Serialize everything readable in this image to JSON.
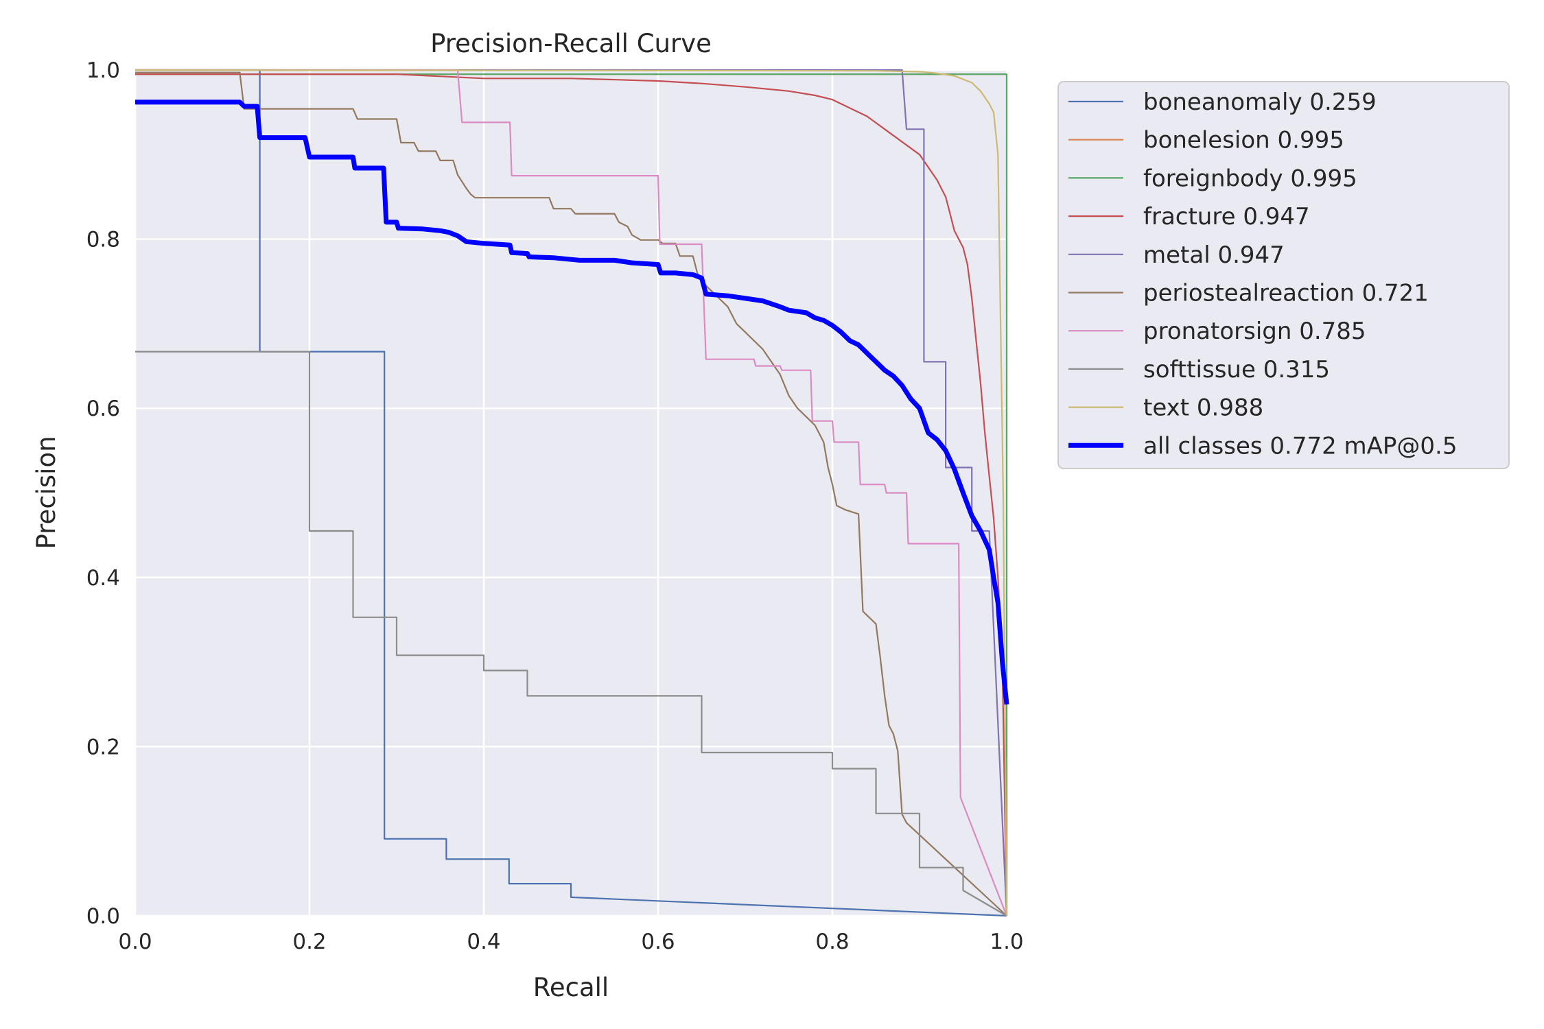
{
  "chart_data": {
    "type": "line",
    "title": "Precision-Recall Curve",
    "xlabel": "Recall",
    "ylabel": "Precision",
    "xlim": [
      0,
      1
    ],
    "ylim": [
      0,
      1
    ],
    "grid": true,
    "legend_position": "outside-right-top",
    "x_ticks": [
      0.0,
      0.2,
      0.4,
      0.6,
      0.8,
      1.0
    ],
    "y_ticks": [
      0.0,
      0.2,
      0.4,
      0.6,
      0.8,
      1.0
    ],
    "x_tick_labels": [
      "0.0",
      "0.2",
      "0.4",
      "0.6",
      "0.8",
      "1.0"
    ],
    "y_tick_labels": [
      "0.0",
      "0.2",
      "0.4",
      "0.6",
      "0.8",
      "1.0"
    ],
    "series": [
      {
        "name": "boneanomaly",
        "map": "0.259",
        "label": "boneanomaly 0.259",
        "color": "#4c72b0",
        "bold": false,
        "points": [
          [
            0,
            1
          ],
          [
            0.143,
            1
          ],
          [
            0.143,
            0.667
          ],
          [
            0.286,
            0.667
          ],
          [
            0.286,
            0.091
          ],
          [
            0.357,
            0.091
          ],
          [
            0.357,
            0.067
          ],
          [
            0.429,
            0.067
          ],
          [
            0.429,
            0.038
          ],
          [
            0.5,
            0.038
          ],
          [
            0.5,
            0.022
          ],
          [
            1.0,
            0.0
          ]
        ]
      },
      {
        "name": "bonelesion",
        "map": "0.995",
        "label": "bonelesion 0.995",
        "color": "#dd8452",
        "bold": false,
        "points": [
          [
            0,
            0.995
          ],
          [
            0.99,
            0.995
          ],
          [
            1.0,
            0.995
          ],
          [
            1.0,
            0.0
          ]
        ]
      },
      {
        "name": "foreignbody",
        "map": "0.995",
        "label": "foreignbody 0.995",
        "color": "#55a868",
        "bold": false,
        "points": [
          [
            0,
            0.995
          ],
          [
            0.99,
            0.995
          ],
          [
            1.0,
            0.995
          ],
          [
            1.0,
            0.0
          ]
        ]
      },
      {
        "name": "fracture",
        "map": "0.947",
        "label": "fracture 0.947",
        "color": "#c44e52",
        "bold": false,
        "points": [
          [
            0,
            0.995
          ],
          [
            0.3,
            0.995
          ],
          [
            0.4,
            0.99
          ],
          [
            0.5,
            0.99
          ],
          [
            0.6,
            0.987
          ],
          [
            0.65,
            0.984
          ],
          [
            0.7,
            0.98
          ],
          [
            0.75,
            0.975
          ],
          [
            0.78,
            0.97
          ],
          [
            0.8,
            0.965
          ],
          [
            0.82,
            0.955
          ],
          [
            0.84,
            0.945
          ],
          [
            0.86,
            0.93
          ],
          [
            0.88,
            0.915
          ],
          [
            0.9,
            0.9
          ],
          [
            0.91,
            0.885
          ],
          [
            0.92,
            0.87
          ],
          [
            0.93,
            0.85
          ],
          [
            0.935,
            0.83
          ],
          [
            0.94,
            0.81
          ],
          [
            0.95,
            0.79
          ],
          [
            0.955,
            0.77
          ],
          [
            0.96,
            0.73
          ],
          [
            0.965,
            0.68
          ],
          [
            0.97,
            0.63
          ],
          [
            0.975,
            0.57
          ],
          [
            0.98,
            0.52
          ],
          [
            0.985,
            0.47
          ],
          [
            0.99,
            0.4
          ],
          [
            0.995,
            0.3
          ],
          [
            1.0,
            0.0
          ]
        ]
      },
      {
        "name": "metal",
        "map": "0.947",
        "label": "metal 0.947",
        "color": "#8172b3",
        "bold": false,
        "points": [
          [
            0,
            1
          ],
          [
            0.88,
            1
          ],
          [
            0.885,
            0.93
          ],
          [
            0.905,
            0.93
          ],
          [
            0.905,
            0.655
          ],
          [
            0.93,
            0.655
          ],
          [
            0.93,
            0.53
          ],
          [
            0.96,
            0.53
          ],
          [
            0.96,
            0.455
          ],
          [
            0.98,
            0.455
          ],
          [
            1.0,
            0.0
          ]
        ]
      },
      {
        "name": "periostealreaction",
        "map": "0.721",
        "label": "periostealreaction 0.721",
        "color": "#937860",
        "bold": false,
        "points": [
          [
            0,
            0.997
          ],
          [
            0.12,
            0.997
          ],
          [
            0.125,
            0.954
          ],
          [
            0.25,
            0.954
          ],
          [
            0.255,
            0.942
          ],
          [
            0.3,
            0.942
          ],
          [
            0.305,
            0.914
          ],
          [
            0.32,
            0.914
          ],
          [
            0.325,
            0.904
          ],
          [
            0.345,
            0.904
          ],
          [
            0.35,
            0.893
          ],
          [
            0.365,
            0.893
          ],
          [
            0.37,
            0.876
          ],
          [
            0.375,
            0.868
          ],
          [
            0.38,
            0.86
          ],
          [
            0.385,
            0.853
          ],
          [
            0.39,
            0.849
          ],
          [
            0.475,
            0.849
          ],
          [
            0.48,
            0.836
          ],
          [
            0.5,
            0.836
          ],
          [
            0.505,
            0.83
          ],
          [
            0.55,
            0.83
          ],
          [
            0.555,
            0.82
          ],
          [
            0.565,
            0.815
          ],
          [
            0.57,
            0.805
          ],
          [
            0.58,
            0.799
          ],
          [
            0.6,
            0.799
          ],
          [
            0.605,
            0.795
          ],
          [
            0.62,
            0.795
          ],
          [
            0.625,
            0.78
          ],
          [
            0.64,
            0.78
          ],
          [
            0.645,
            0.76
          ],
          [
            0.65,
            0.75
          ],
          [
            0.66,
            0.74
          ],
          [
            0.68,
            0.72
          ],
          [
            0.69,
            0.7
          ],
          [
            0.7,
            0.69
          ],
          [
            0.72,
            0.67
          ],
          [
            0.74,
            0.64
          ],
          [
            0.75,
            0.615
          ],
          [
            0.76,
            0.6
          ],
          [
            0.78,
            0.58
          ],
          [
            0.79,
            0.56
          ],
          [
            0.795,
            0.53
          ],
          [
            0.8,
            0.51
          ],
          [
            0.805,
            0.485
          ],
          [
            0.815,
            0.48
          ],
          [
            0.83,
            0.475
          ],
          [
            0.835,
            0.36
          ],
          [
            0.84,
            0.355
          ],
          [
            0.85,
            0.345
          ],
          [
            0.855,
            0.305
          ],
          [
            0.86,
            0.26
          ],
          [
            0.865,
            0.225
          ],
          [
            0.87,
            0.215
          ],
          [
            0.875,
            0.195
          ],
          [
            0.88,
            0.12
          ],
          [
            0.885,
            0.11
          ],
          [
            1.0,
            0.0
          ]
        ]
      },
      {
        "name": "pronatorsign",
        "map": "0.785",
        "label": "pronatorsign 0.785",
        "color": "#da8bc3",
        "bold": false,
        "points": [
          [
            0,
            1
          ],
          [
            0.37,
            1
          ],
          [
            0.375,
            0.938
          ],
          [
            0.43,
            0.938
          ],
          [
            0.432,
            0.875
          ],
          [
            0.6,
            0.875
          ],
          [
            0.602,
            0.794
          ],
          [
            0.65,
            0.794
          ],
          [
            0.655,
            0.658
          ],
          [
            0.71,
            0.658
          ],
          [
            0.712,
            0.65
          ],
          [
            0.74,
            0.65
          ],
          [
            0.742,
            0.645
          ],
          [
            0.775,
            0.645
          ],
          [
            0.777,
            0.585
          ],
          [
            0.8,
            0.585
          ],
          [
            0.802,
            0.56
          ],
          [
            0.83,
            0.56
          ],
          [
            0.832,
            0.51
          ],
          [
            0.86,
            0.51
          ],
          [
            0.862,
            0.5
          ],
          [
            0.885,
            0.5
          ],
          [
            0.887,
            0.44
          ],
          [
            0.945,
            0.44
          ],
          [
            0.947,
            0.14
          ],
          [
            1.0,
            0.0
          ]
        ]
      },
      {
        "name": "softtissue",
        "map": "0.315",
        "label": "softtissue 0.315",
        "color": "#8c8c8c",
        "bold": false,
        "points": [
          [
            0,
            0.667
          ],
          [
            0.2,
            0.667
          ],
          [
            0.2,
            0.455
          ],
          [
            0.25,
            0.455
          ],
          [
            0.25,
            0.353
          ],
          [
            0.3,
            0.353
          ],
          [
            0.3,
            0.308
          ],
          [
            0.4,
            0.308
          ],
          [
            0.4,
            0.29
          ],
          [
            0.45,
            0.29
          ],
          [
            0.45,
            0.26
          ],
          [
            0.65,
            0.26
          ],
          [
            0.65,
            0.193
          ],
          [
            0.8,
            0.193
          ],
          [
            0.8,
            0.174
          ],
          [
            0.85,
            0.174
          ],
          [
            0.85,
            0.121
          ],
          [
            0.9,
            0.121
          ],
          [
            0.9,
            0.057
          ],
          [
            0.95,
            0.057
          ],
          [
            0.95,
            0.03
          ],
          [
            1.0,
            0.0
          ]
        ]
      },
      {
        "name": "text",
        "map": "0.988",
        "label": "text 0.988",
        "color": "#ccb974",
        "bold": false,
        "points": [
          [
            0,
            1
          ],
          [
            0.85,
            0.999
          ],
          [
            0.9,
            0.998
          ],
          [
            0.92,
            0.996
          ],
          [
            0.94,
            0.993
          ],
          [
            0.96,
            0.985
          ],
          [
            0.97,
            0.975
          ],
          [
            0.98,
            0.96
          ],
          [
            0.985,
            0.95
          ],
          [
            0.99,
            0.9
          ],
          [
            0.993,
            0.7
          ],
          [
            0.996,
            0.5
          ],
          [
            1.0,
            0.0
          ]
        ]
      },
      {
        "name": "all classes",
        "map": "0.772",
        "label": "all classes 0.772 mAP@0.5",
        "color": "#0000ff",
        "bold": true,
        "points": [
          [
            0,
            0.962
          ],
          [
            0.12,
            0.962
          ],
          [
            0.125,
            0.957
          ],
          [
            0.14,
            0.957
          ],
          [
            0.143,
            0.92
          ],
          [
            0.195,
            0.92
          ],
          [
            0.2,
            0.897
          ],
          [
            0.25,
            0.897
          ],
          [
            0.252,
            0.884
          ],
          [
            0.285,
            0.884
          ],
          [
            0.288,
            0.82
          ],
          [
            0.3,
            0.82
          ],
          [
            0.302,
            0.813
          ],
          [
            0.33,
            0.812
          ],
          [
            0.35,
            0.81
          ],
          [
            0.36,
            0.808
          ],
          [
            0.37,
            0.804
          ],
          [
            0.38,
            0.797
          ],
          [
            0.4,
            0.795
          ],
          [
            0.43,
            0.793
          ],
          [
            0.432,
            0.784
          ],
          [
            0.45,
            0.783
          ],
          [
            0.452,
            0.779
          ],
          [
            0.48,
            0.778
          ],
          [
            0.5,
            0.776
          ],
          [
            0.51,
            0.775
          ],
          [
            0.55,
            0.775
          ],
          [
            0.57,
            0.772
          ],
          [
            0.6,
            0.77
          ],
          [
            0.603,
            0.76
          ],
          [
            0.62,
            0.76
          ],
          [
            0.64,
            0.758
          ],
          [
            0.65,
            0.754
          ],
          [
            0.655,
            0.735
          ],
          [
            0.68,
            0.733
          ],
          [
            0.7,
            0.73
          ],
          [
            0.72,
            0.727
          ],
          [
            0.74,
            0.72
          ],
          [
            0.75,
            0.716
          ],
          [
            0.77,
            0.713
          ],
          [
            0.78,
            0.707
          ],
          [
            0.79,
            0.704
          ],
          [
            0.8,
            0.698
          ],
          [
            0.81,
            0.69
          ],
          [
            0.82,
            0.68
          ],
          [
            0.83,
            0.675
          ],
          [
            0.84,
            0.665
          ],
          [
            0.85,
            0.655
          ],
          [
            0.86,
            0.645
          ],
          [
            0.87,
            0.638
          ],
          [
            0.88,
            0.627
          ],
          [
            0.89,
            0.611
          ],
          [
            0.9,
            0.6
          ],
          [
            0.91,
            0.571
          ],
          [
            0.92,
            0.563
          ],
          [
            0.93,
            0.55
          ],
          [
            0.94,
            0.528
          ],
          [
            0.95,
            0.5
          ],
          [
            0.96,
            0.473
          ],
          [
            0.97,
            0.455
          ],
          [
            0.98,
            0.433
          ],
          [
            0.985,
            0.4
          ],
          [
            0.99,
            0.37
          ],
          [
            0.995,
            0.3
          ],
          [
            1.0,
            0.25
          ]
        ]
      }
    ]
  }
}
